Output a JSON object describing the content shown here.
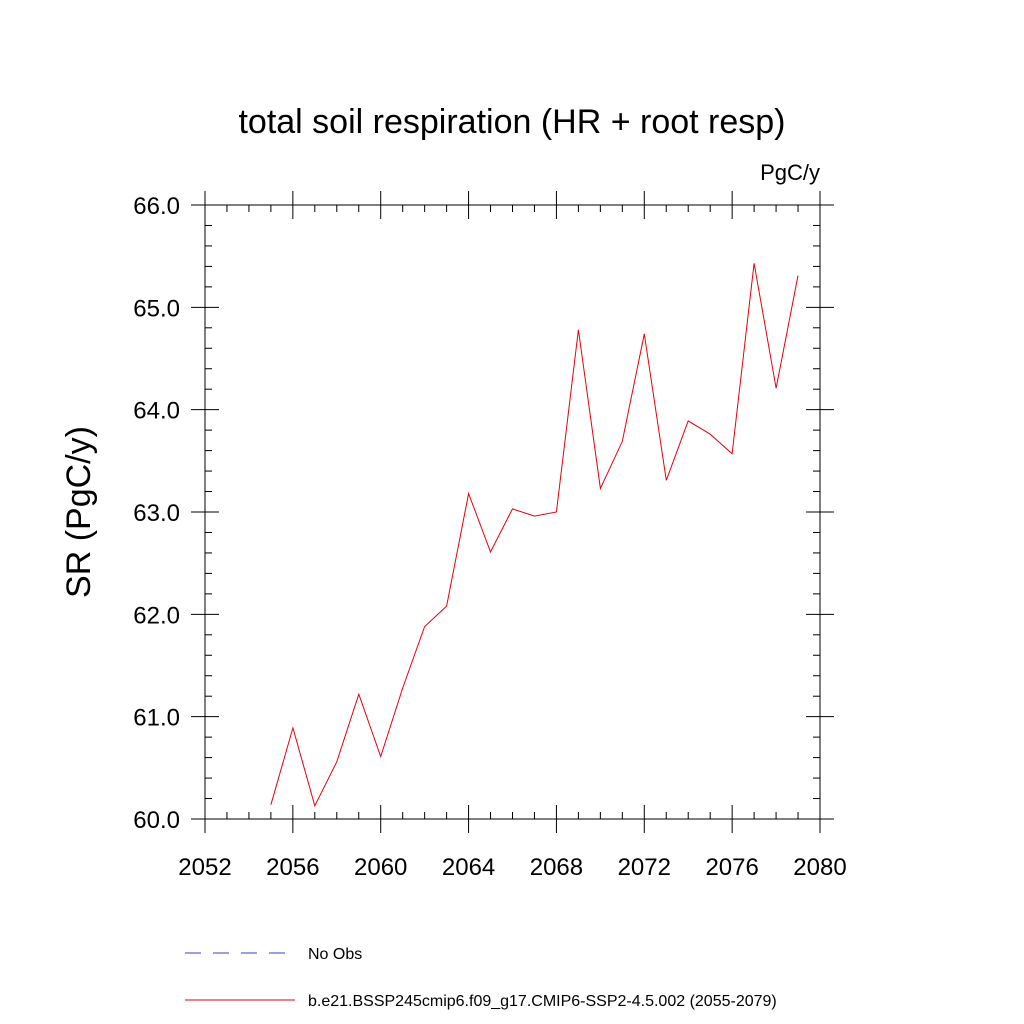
{
  "chart_data": {
    "type": "line",
    "title": "total soil respiration (HR + root resp)",
    "units": "PgC/y",
    "ylabel": "SR  (PgC/y)",
    "xlabel": "",
    "xlim": [
      2052,
      2080
    ],
    "ylim": [
      60.0,
      66.0
    ],
    "x_ticks": [
      2052,
      2056,
      2060,
      2064,
      2068,
      2072,
      2076,
      2080
    ],
    "x_tick_labels": [
      "2052",
      "2056",
      "2060",
      "2064",
      "2068",
      "2072",
      "2076",
      "2080"
    ],
    "y_ticks": [
      60,
      61,
      62,
      63,
      64,
      65,
      66
    ],
    "y_tick_labels": [
      "60.0",
      "61.0",
      "62.0",
      "63.0",
      "64.0",
      "65.0",
      "66.0"
    ],
    "grid": false,
    "legend_position": "bottom",
    "series": [
      {
        "name": "b.e21.BSSP245cmip6.f09_g17.CMIP6-SSP2-4.5.002 (2055-2079)",
        "color": "#e8000b",
        "style": "solid",
        "x": [
          2055,
          2056,
          2057,
          2058,
          2059,
          2060,
          2061,
          2062,
          2063,
          2064,
          2065,
          2066,
          2067,
          2068,
          2069,
          2070,
          2071,
          2072,
          2073,
          2074,
          2075,
          2076,
          2077,
          2078,
          2079
        ],
        "y": [
          60.14,
          60.89,
          60.13,
          60.56,
          61.22,
          60.61,
          61.28,
          61.88,
          62.08,
          63.18,
          62.61,
          63.03,
          62.96,
          63.0,
          64.78,
          63.23,
          63.69,
          64.74,
          63.31,
          63.89,
          63.76,
          63.57,
          65.43,
          64.21,
          65.31
        ]
      },
      {
        "name": "No Obs",
        "color": "#3c3cc8",
        "style": "dashed",
        "x": [],
        "y": []
      }
    ]
  }
}
